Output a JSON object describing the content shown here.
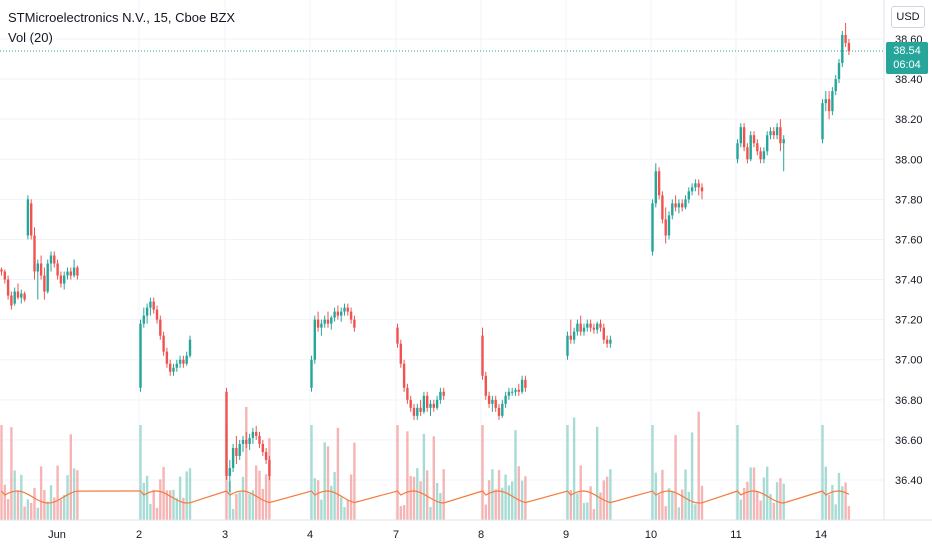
{
  "legend": {
    "title": "STMicroelectronics N.V., 15, Cboe BZX",
    "volume_label": "Vol (20)"
  },
  "currency": "USD",
  "last_price": {
    "value": "38.54",
    "countdown": "06:04"
  },
  "colors": {
    "up": "#26a69a",
    "down": "#ef5350",
    "vol_up": "#a7dbd4",
    "vol_down": "#f5b5b4",
    "vol_ma": "#f57c3f",
    "grid": "#f0f3fa"
  },
  "chart_data": {
    "type": "candlestick",
    "title": "STMicroelectronics N.V., 15, Cboe BZX",
    "y_ticks": [
      "36.40",
      "36.60",
      "36.80",
      "37.00",
      "37.20",
      "37.40",
      "37.60",
      "37.80",
      "38.00",
      "38.20",
      "38.40",
      "38.60"
    ],
    "ylim": [
      36.2,
      38.7
    ],
    "x_ticks": [
      "Jun",
      "2",
      "3",
      "4",
      "7",
      "8",
      "9",
      "10",
      "11",
      "14"
    ],
    "volume_indicator": "Vol (20)",
    "series": [
      {
        "name": "Jun",
        "ohlc": [
          [
            37.45,
            37.46,
            37.42,
            37.44
          ],
          [
            37.44,
            37.45,
            37.38,
            37.4
          ],
          [
            37.4,
            37.42,
            37.3,
            37.32
          ],
          [
            37.32,
            37.34,
            37.25,
            37.27
          ],
          [
            37.28,
            37.36,
            37.27,
            37.34
          ],
          [
            37.34,
            37.38,
            37.3,
            37.31
          ],
          [
            37.31,
            37.35,
            37.28,
            37.33
          ],
          [
            37.33,
            37.34,
            37.29,
            37.3
          ],
          [
            37.62,
            37.82,
            37.6,
            37.8
          ],
          [
            37.78,
            37.8,
            37.6,
            37.62
          ],
          [
            37.62,
            37.66,
            37.4,
            37.44
          ],
          [
            37.44,
            37.5,
            37.3,
            37.48
          ],
          [
            37.48,
            37.52,
            37.4,
            37.42
          ],
          [
            37.42,
            37.46,
            37.3,
            37.34
          ],
          [
            37.34,
            37.5,
            37.33,
            37.48
          ],
          [
            37.48,
            37.54,
            37.44,
            37.52
          ],
          [
            37.52,
            37.54,
            37.46,
            37.48
          ],
          [
            37.48,
            37.5,
            37.4,
            37.42
          ],
          [
            37.42,
            37.44,
            37.36,
            37.38
          ],
          [
            37.38,
            37.44,
            37.35,
            37.42
          ],
          [
            37.42,
            37.46,
            37.4,
            37.44
          ],
          [
            37.44,
            37.46,
            37.4,
            37.42
          ],
          [
            37.42,
            37.5,
            37.41,
            37.46
          ],
          [
            37.46,
            37.47,
            37.4,
            37.42
          ]
        ]
      },
      {
        "name": "2",
        "ohlc": [
          [
            36.86,
            37.2,
            36.84,
            37.18
          ],
          [
            37.18,
            37.26,
            37.16,
            37.22
          ],
          [
            37.22,
            37.28,
            37.18,
            37.26
          ],
          [
            37.26,
            37.31,
            37.22,
            37.29
          ],
          [
            37.29,
            37.31,
            37.23,
            37.25
          ],
          [
            37.25,
            37.27,
            37.18,
            37.2
          ],
          [
            37.2,
            37.22,
            37.1,
            37.12
          ],
          [
            37.12,
            37.14,
            37.02,
            37.04
          ],
          [
            37.04,
            37.06,
            36.96,
            36.98
          ],
          [
            36.98,
            37.0,
            36.92,
            36.94
          ],
          [
            36.94,
            36.98,
            36.92,
            36.96
          ],
          [
            36.96,
            37.0,
            36.94,
            36.98
          ],
          [
            36.98,
            37.02,
            36.96,
            37.0
          ],
          [
            37.0,
            37.02,
            36.96,
            36.98
          ],
          [
            36.98,
            37.04,
            36.97,
            37.02
          ],
          [
            37.02,
            37.12,
            37.01,
            37.1
          ]
        ]
      },
      {
        "name": "3",
        "ohlc": [
          [
            36.84,
            36.86,
            36.4,
            36.42
          ],
          [
            36.42,
            36.5,
            36.34,
            36.46
          ],
          [
            36.46,
            36.58,
            36.44,
            36.56
          ],
          [
            36.56,
            36.62,
            36.48,
            36.52
          ],
          [
            36.52,
            36.6,
            36.5,
            36.58
          ],
          [
            36.58,
            36.62,
            36.54,
            36.6
          ],
          [
            36.6,
            36.64,
            36.56,
            36.58
          ],
          [
            36.58,
            36.63,
            36.55,
            36.61
          ],
          [
            36.61,
            36.66,
            36.58,
            36.64
          ],
          [
            36.64,
            36.67,
            36.6,
            36.62
          ],
          [
            36.62,
            36.64,
            36.56,
            36.58
          ],
          [
            36.58,
            36.6,
            36.52,
            36.54
          ],
          [
            36.54,
            36.56,
            36.48,
            36.5
          ],
          [
            36.5,
            36.52,
            36.4,
            36.42
          ]
        ]
      },
      {
        "name": "4",
        "ohlc": [
          [
            36.86,
            37.02,
            36.84,
            37.0
          ],
          [
            37.0,
            37.22,
            36.98,
            37.2
          ],
          [
            37.2,
            37.24,
            37.14,
            37.16
          ],
          [
            37.16,
            37.2,
            37.12,
            37.18
          ],
          [
            37.18,
            37.22,
            37.16,
            37.2
          ],
          [
            37.2,
            37.24,
            37.16,
            37.18
          ],
          [
            37.18,
            37.22,
            37.15,
            37.21
          ],
          [
            37.21,
            37.26,
            37.19,
            37.24
          ],
          [
            37.24,
            37.27,
            37.2,
            37.22
          ],
          [
            37.22,
            37.26,
            37.19,
            37.24
          ],
          [
            37.24,
            37.28,
            37.22,
            37.26
          ],
          [
            37.26,
            37.28,
            37.22,
            37.24
          ],
          [
            37.24,
            37.26,
            37.18,
            37.2
          ],
          [
            37.2,
            37.22,
            37.14,
            37.16
          ]
        ]
      },
      {
        "name": "7",
        "ohlc": [
          [
            37.16,
            37.18,
            37.06,
            37.08
          ],
          [
            37.08,
            37.1,
            36.96,
            36.98
          ],
          [
            36.98,
            37.0,
            36.84,
            36.86
          ],
          [
            36.86,
            36.88,
            36.78,
            36.8
          ],
          [
            36.8,
            36.82,
            36.74,
            36.76
          ],
          [
            36.76,
            36.78,
            36.7,
            36.72
          ],
          [
            36.72,
            36.78,
            36.7,
            36.76
          ],
          [
            36.76,
            36.8,
            36.72,
            36.74
          ],
          [
            36.74,
            36.84,
            36.73,
            36.82
          ],
          [
            36.82,
            36.84,
            36.74,
            36.76
          ],
          [
            36.76,
            36.8,
            36.72,
            36.78
          ],
          [
            36.78,
            36.8,
            36.74,
            36.76
          ],
          [
            36.76,
            36.82,
            36.75,
            36.8
          ],
          [
            36.8,
            36.86,
            36.78,
            36.84
          ],
          [
            36.84,
            36.86,
            36.8,
            36.82
          ]
        ]
      },
      {
        "name": "8",
        "ohlc": [
          [
            37.12,
            37.16,
            36.9,
            36.92
          ],
          [
            36.92,
            36.94,
            36.8,
            36.82
          ],
          [
            36.82,
            36.84,
            36.76,
            36.78
          ],
          [
            36.78,
            36.82,
            36.74,
            36.8
          ],
          [
            36.8,
            36.82,
            36.74,
            36.76
          ],
          [
            36.76,
            36.78,
            36.7,
            36.72
          ],
          [
            36.72,
            36.8,
            36.71,
            36.78
          ],
          [
            36.78,
            36.84,
            36.76,
            36.82
          ],
          [
            36.82,
            36.86,
            36.8,
            36.84
          ],
          [
            36.84,
            36.86,
            36.82,
            36.84
          ],
          [
            36.84,
            36.86,
            36.82,
            36.85
          ],
          [
            36.85,
            36.88,
            36.82,
            36.84
          ],
          [
            36.84,
            36.92,
            36.83,
            36.9
          ],
          [
            36.9,
            36.92,
            36.84,
            36.86
          ]
        ]
      },
      {
        "name": "9",
        "ohlc": [
          [
            37.02,
            37.14,
            37.0,
            37.12
          ],
          [
            37.12,
            37.2,
            37.08,
            37.1
          ],
          [
            37.1,
            37.16,
            37.08,
            37.14
          ],
          [
            37.14,
            37.2,
            37.12,
            37.18
          ],
          [
            37.18,
            37.22,
            37.12,
            37.14
          ],
          [
            37.14,
            37.18,
            37.12,
            37.16
          ],
          [
            37.16,
            37.2,
            37.14,
            37.18
          ],
          [
            37.18,
            37.2,
            37.14,
            37.16
          ],
          [
            37.16,
            37.18,
            37.13,
            37.15
          ],
          [
            37.15,
            37.19,
            37.13,
            37.18
          ],
          [
            37.18,
            37.2,
            37.14,
            37.16
          ],
          [
            37.16,
            37.18,
            37.08,
            37.1
          ],
          [
            37.1,
            37.12,
            37.06,
            37.08
          ],
          [
            37.08,
            37.12,
            37.06,
            37.1
          ]
        ]
      },
      {
        "name": "10",
        "ohlc": [
          [
            37.54,
            37.8,
            37.52,
            37.78
          ],
          [
            37.78,
            37.98,
            37.76,
            37.94
          ],
          [
            37.94,
            37.96,
            37.8,
            37.82
          ],
          [
            37.82,
            37.84,
            37.68,
            37.7
          ],
          [
            37.7,
            37.76,
            37.58,
            37.62
          ],
          [
            37.62,
            37.74,
            37.6,
            37.72
          ],
          [
            37.72,
            37.8,
            37.7,
            37.78
          ],
          [
            37.78,
            37.82,
            37.74,
            37.76
          ],
          [
            37.76,
            37.8,
            37.73,
            37.78
          ],
          [
            37.78,
            37.8,
            37.74,
            37.76
          ],
          [
            37.76,
            37.82,
            37.75,
            37.8
          ],
          [
            37.8,
            37.86,
            37.78,
            37.84
          ],
          [
            37.84,
            37.88,
            37.82,
            37.86
          ],
          [
            37.86,
            37.9,
            37.84,
            37.88
          ],
          [
            37.88,
            37.9,
            37.82,
            37.86
          ],
          [
            37.86,
            37.88,
            37.8,
            37.84
          ]
        ]
      },
      {
        "name": "11",
        "ohlc": [
          [
            38.0,
            38.1,
            37.98,
            38.08
          ],
          [
            38.08,
            38.18,
            38.06,
            38.16
          ],
          [
            38.16,
            38.18,
            38.04,
            38.06
          ],
          [
            38.06,
            38.08,
            37.98,
            38.0
          ],
          [
            38.0,
            38.14,
            37.99,
            38.12
          ],
          [
            38.12,
            38.14,
            38.06,
            38.08
          ],
          [
            38.08,
            38.1,
            38.02,
            38.04
          ],
          [
            38.04,
            38.06,
            37.98,
            38.0
          ],
          [
            38.0,
            38.06,
            37.98,
            38.04
          ],
          [
            38.04,
            38.14,
            38.02,
            38.12
          ],
          [
            38.12,
            38.16,
            38.1,
            38.14
          ],
          [
            38.14,
            38.16,
            38.1,
            38.12
          ],
          [
            38.12,
            38.18,
            38.1,
            38.16
          ],
          [
            38.16,
            38.2,
            38.04,
            38.08
          ],
          [
            38.08,
            38.12,
            37.94,
            38.1
          ]
        ]
      },
      {
        "name": "14",
        "ohlc": [
          [
            38.1,
            38.3,
            38.08,
            38.28
          ],
          [
            38.28,
            38.34,
            38.24,
            38.3
          ],
          [
            38.3,
            38.34,
            38.2,
            38.24
          ],
          [
            38.24,
            38.36,
            38.22,
            38.34
          ],
          [
            38.34,
            38.42,
            38.32,
            38.4
          ],
          [
            38.4,
            38.5,
            38.38,
            38.48
          ],
          [
            38.48,
            38.64,
            38.46,
            38.62
          ],
          [
            38.62,
            38.68,
            38.56,
            38.58
          ],
          [
            38.58,
            38.6,
            38.52,
            38.54
          ]
        ]
      }
    ]
  }
}
